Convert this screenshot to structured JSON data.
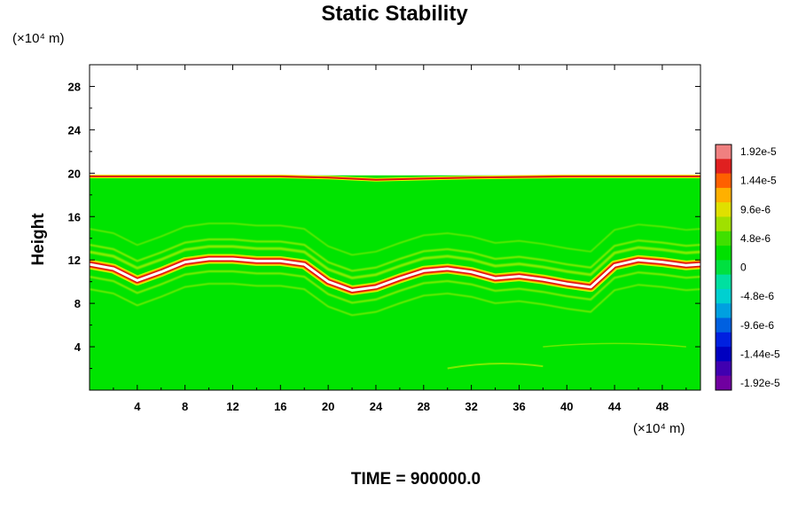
{
  "title": "Static Stability",
  "time_label": "TIME = 900000.0",
  "chart_data": {
    "type": "heatmap",
    "title": "Static Stability",
    "ylabel": "Height",
    "x_unit": "(×10⁴ m)",
    "y_unit": "(×10⁴ m)",
    "xlim": [
      0,
      51.2
    ],
    "ylim": [
      0,
      30
    ],
    "x_ticks": [
      "4",
      "8",
      "12",
      "16",
      "20",
      "24",
      "28",
      "32",
      "36",
      "40",
      "44",
      "48"
    ],
    "y_ticks": [
      "4",
      "8",
      "12",
      "16",
      "20",
      "24",
      "28"
    ],
    "data_top": 19.8,
    "colorbar_labels": [
      "1.92e-5",
      "1.44e-5",
      "9.6e-6",
      "4.8e-6",
      "0",
      "-4.8e-6",
      "-9.6e-6",
      "-1.44e-5",
      "-1.92e-5"
    ],
    "colorbar_colors": [
      "#f08080",
      "#e02020",
      "#ff6000",
      "#ffb000",
      "#e0e000",
      "#a0e000",
      "#40e000",
      "#00e000",
      "#00e040",
      "#00e0a0",
      "#00d0d0",
      "#00a0e0",
      "#0060e0",
      "#0020e0",
      "#0000c0",
      "#4000b0",
      "#7000a0"
    ],
    "stable_band": [
      {
        "x": 0.0,
        "y": 11.6
      },
      {
        "x": 2.0,
        "y": 11.2
      },
      {
        "x": 4.0,
        "y": 10.1
      },
      {
        "x": 6.0,
        "y": 10.9
      },
      {
        "x": 8.0,
        "y": 11.8
      },
      {
        "x": 10.0,
        "y": 12.1
      },
      {
        "x": 12.0,
        "y": 12.1
      },
      {
        "x": 14.0,
        "y": 11.9
      },
      {
        "x": 16.0,
        "y": 11.9
      },
      {
        "x": 18.0,
        "y": 11.6
      },
      {
        "x": 20.0,
        "y": 10.0
      },
      {
        "x": 22.0,
        "y": 9.2
      },
      {
        "x": 24.0,
        "y": 9.5
      },
      {
        "x": 26.0,
        "y": 10.3
      },
      {
        "x": 28.0,
        "y": 11.0
      },
      {
        "x": 30.0,
        "y": 11.2
      },
      {
        "x": 32.0,
        "y": 10.9
      },
      {
        "x": 34.0,
        "y": 10.3
      },
      {
        "x": 36.0,
        "y": 10.5
      },
      {
        "x": 38.0,
        "y": 10.2
      },
      {
        "x": 40.0,
        "y": 9.8
      },
      {
        "x": 42.0,
        "y": 9.5
      },
      {
        "x": 44.0,
        "y": 11.5
      },
      {
        "x": 46.0,
        "y": 12.0
      },
      {
        "x": 48.0,
        "y": 11.8
      },
      {
        "x": 50.0,
        "y": 11.5
      },
      {
        "x": 51.2,
        "y": 11.6
      }
    ],
    "tropopause_band": [
      {
        "x": 0.0,
        "y": 19.7
      },
      {
        "x": 8.0,
        "y": 19.7
      },
      {
        "x": 16.0,
        "y": 19.7
      },
      {
        "x": 20.0,
        "y": 19.6
      },
      {
        "x": 24.0,
        "y": 19.4
      },
      {
        "x": 28.0,
        "y": 19.5
      },
      {
        "x": 32.0,
        "y": 19.6
      },
      {
        "x": 40.0,
        "y": 19.7
      },
      {
        "x": 51.2,
        "y": 19.7
      }
    ]
  }
}
